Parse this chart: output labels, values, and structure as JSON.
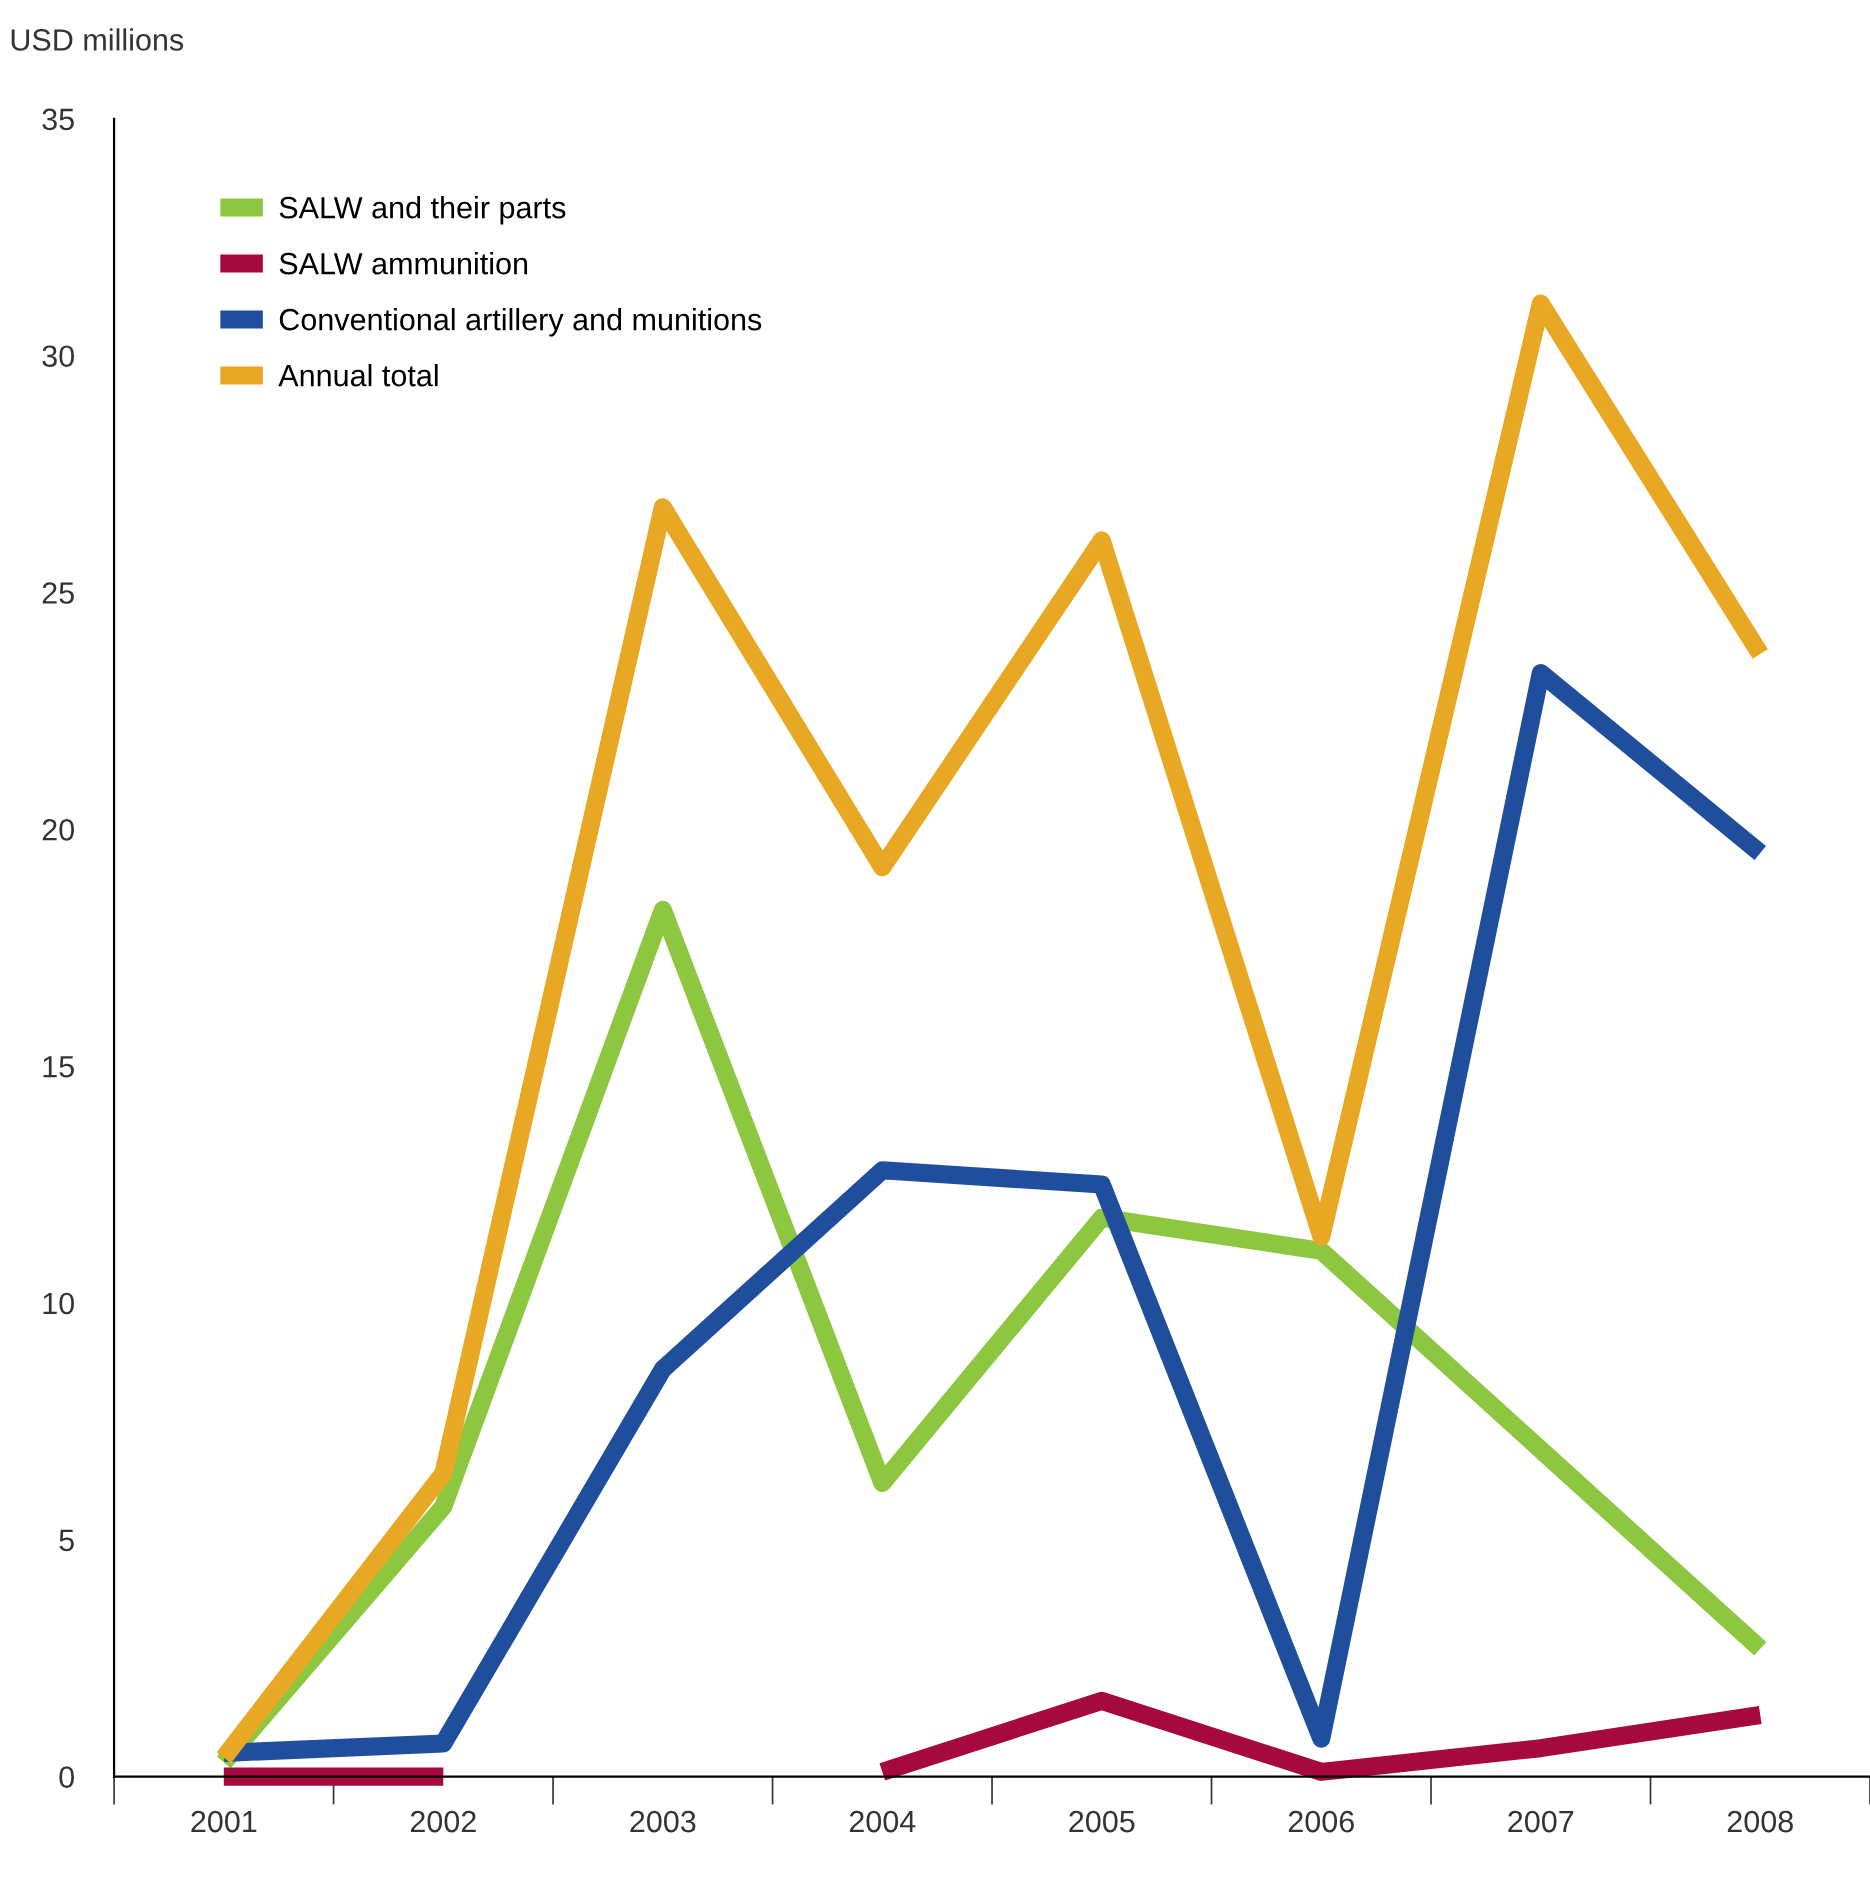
{
  "chart_data": {
    "type": "line",
    "ylabel": "USD millions",
    "categories": [
      "2001",
      "2002",
      "2003",
      "2004",
      "2005",
      "2006",
      "2007",
      "2008"
    ],
    "series": [
      {
        "name": "SALW and their parts",
        "color": "#8dc63f",
        "values": [
          0.3,
          5.7,
          18.3,
          6.2,
          11.8,
          11.1,
          6.9,
          2.7
        ]
      },
      {
        "name": "SALW ammunition",
        "color": "#a6093d",
        "values": [
          0,
          0,
          null,
          0.1,
          1.6,
          0.1,
          0.6,
          1.3
        ]
      },
      {
        "name": "Conventional artillery and munitions",
        "color": "#1f4e9c",
        "values": [
          0.5,
          0.7,
          8.6,
          12.8,
          12.5,
          0.8,
          23.3,
          19.5
        ]
      },
      {
        "name": "Annual total",
        "color": "#e8a823",
        "values": [
          0.4,
          6.4,
          26.8,
          19.2,
          26.1,
          11.4,
          31.1,
          23.7
        ]
      }
    ],
    "ylim": [
      0,
      35
    ],
    "yticks": [
      0,
      5,
      10,
      15,
      20,
      25,
      30,
      35
    ],
    "grid": false,
    "legend": "top left",
    "marker": "none",
    "line_style": "solid"
  }
}
